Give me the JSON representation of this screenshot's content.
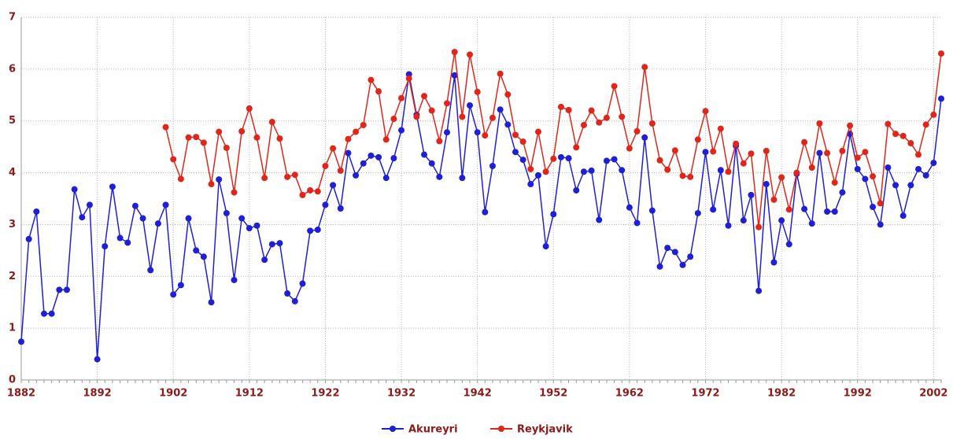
{
  "chart_data": {
    "type": "line",
    "x": [
      1882,
      1883,
      1884,
      1885,
      1886,
      1887,
      1888,
      1889,
      1890,
      1891,
      1892,
      1893,
      1894,
      1895,
      1896,
      1897,
      1898,
      1899,
      1900,
      1901,
      1902,
      1903,
      1904,
      1905,
      1906,
      1907,
      1908,
      1909,
      1910,
      1911,
      1912,
      1913,
      1914,
      1915,
      1916,
      1917,
      1918,
      1919,
      1920,
      1921,
      1922,
      1923,
      1924,
      1925,
      1926,
      1927,
      1928,
      1929,
      1930,
      1931,
      1932,
      1933,
      1934,
      1935,
      1936,
      1937,
      1938,
      1939,
      1940,
      1941,
      1942,
      1943,
      1944,
      1945,
      1946,
      1947,
      1948,
      1949,
      1950,
      1951,
      1952,
      1953,
      1954,
      1955,
      1956,
      1957,
      1958,
      1959,
      1960,
      1961,
      1962,
      1963,
      1964,
      1965,
      1966,
      1967,
      1968,
      1969,
      1970,
      1971,
      1972,
      1973,
      1974,
      1975,
      1976,
      1977,
      1978,
      1979,
      1980,
      1981,
      1982,
      1983,
      1984,
      1985,
      1986,
      1987,
      1988,
      1989,
      1990,
      1991,
      1992,
      1993,
      1994,
      1995,
      1996,
      1997,
      1998,
      1999,
      2000,
      2001,
      2002,
      2003
    ],
    "series": [
      {
        "name": "Akureyri",
        "color": "#1f1fd6",
        "values": [
          0.74,
          2.72,
          3.25,
          1.28,
          1.28,
          1.74,
          1.74,
          3.68,
          3.14,
          3.38,
          0.4,
          2.58,
          3.73,
          2.74,
          2.65,
          3.36,
          3.12,
          2.12,
          3.02,
          3.38,
          1.65,
          1.83,
          3.12,
          2.5,
          2.38,
          1.5,
          3.87,
          3.22,
          1.93,
          3.12,
          2.93,
          2.98,
          2.32,
          2.62,
          2.64,
          1.67,
          1.52,
          1.86,
          2.88,
          2.9,
          3.38,
          3.76,
          3.31,
          4.38,
          3.95,
          4.18,
          4.33,
          4.3,
          3.9,
          4.28,
          4.82,
          5.9,
          5.12,
          4.35,
          4.18,
          3.92,
          4.78,
          5.88,
          3.9,
          5.3,
          4.78,
          3.24,
          4.13,
          5.22,
          4.93,
          4.4,
          4.25,
          3.78,
          3.95,
          2.58,
          3.2,
          4.3,
          4.28,
          3.66,
          4.02,
          4.04,
          3.09,
          4.23,
          4.26,
          4.05,
          3.33,
          3.03,
          4.68,
          3.27,
          2.19,
          2.55,
          2.47,
          2.22,
          2.38,
          3.22,
          4.4,
          3.29,
          4.05,
          2.98,
          4.52,
          3.08,
          3.57,
          1.72,
          3.78,
          2.27,
          3.08,
          2.62,
          3.98,
          3.3,
          3.02,
          4.38,
          3.25,
          3.25,
          3.62,
          4.75,
          4.07,
          3.88,
          3.34,
          3.0,
          4.1,
          3.76,
          3.17,
          3.76,
          4.07,
          3.95,
          4.19,
          5.43
        ]
      },
      {
        "name": "Reykjavik",
        "color": "#e0261a",
        "values": [
          null,
          null,
          null,
          null,
          null,
          null,
          null,
          null,
          null,
          null,
          null,
          null,
          null,
          null,
          null,
          null,
          null,
          null,
          null,
          4.88,
          4.26,
          3.88,
          4.68,
          4.69,
          4.58,
          3.78,
          4.79,
          4.48,
          3.62,
          4.8,
          5.24,
          4.68,
          3.9,
          4.98,
          4.66,
          3.92,
          3.96,
          3.57,
          3.66,
          3.64,
          4.13,
          4.47,
          4.04,
          4.65,
          4.79,
          4.92,
          5.79,
          5.57,
          4.64,
          5.04,
          5.44,
          5.82,
          5.08,
          5.48,
          5.2,
          4.61,
          5.34,
          6.33,
          5.08,
          6.28,
          5.56,
          4.72,
          5.06,
          5.91,
          5.51,
          4.73,
          4.6,
          4.07,
          4.79,
          4.02,
          4.27,
          5.27,
          5.21,
          4.49,
          4.92,
          5.2,
          4.97,
          5.06,
          5.67,
          5.08,
          4.47,
          4.8,
          6.04,
          4.95,
          4.24,
          4.06,
          4.43,
          3.94,
          3.92,
          4.64,
          5.19,
          4.41,
          4.85,
          4.02,
          4.56,
          4.18,
          4.37,
          2.95,
          4.42,
          3.48,
          3.91,
          3.29,
          4.0,
          4.59,
          4.1,
          4.95,
          4.38,
          3.81,
          4.42,
          4.91,
          4.29,
          4.4,
          3.93,
          3.41,
          4.94,
          4.75,
          4.71,
          4.57,
          4.35,
          4.93,
          5.12,
          6.3
        ]
      }
    ],
    "xlim": [
      1882,
      2003
    ],
    "xticks": [
      1882,
      1892,
      1902,
      1912,
      1922,
      1932,
      1942,
      1952,
      1962,
      1972,
      1982,
      1992,
      2002
    ],
    "ylim": [
      0,
      7
    ],
    "yticks": [
      0,
      1,
      2,
      3,
      4,
      5,
      6,
      7
    ],
    "grid": true
  }
}
